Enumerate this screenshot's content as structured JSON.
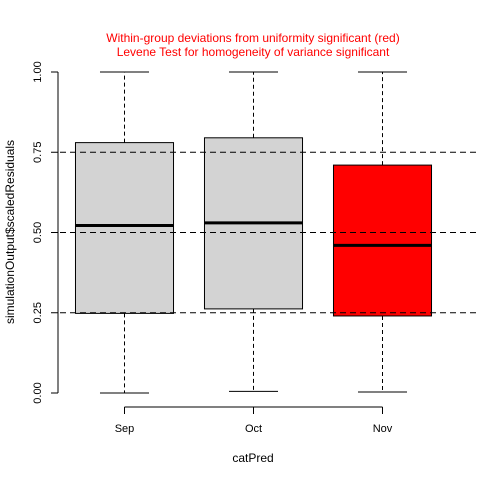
{
  "chart_data": {
    "type": "boxplot",
    "title_lines": [
      "Within-group deviations from uniformity significant (red)",
      "Levene Test for homogeneity of variance significant"
    ],
    "title_color": "#ff0000",
    "xlabel": "catPred",
    "ylabel": "simulationOutput$scaledResiduals",
    "ylim": [
      0,
      1
    ],
    "yticks": [
      0,
      0.25,
      0.5,
      0.75,
      1
    ],
    "ytick_labels": [
      "0.00",
      "0.25",
      "0.50",
      "0.75",
      "1.00"
    ],
    "reference_lines": [
      0.25,
      0.5,
      0.75
    ],
    "categories": [
      "Sep",
      "Oct",
      "Nov"
    ],
    "boxes": [
      {
        "category": "Sep",
        "whisker_low": 0.0,
        "q1": 0.248,
        "median": 0.522,
        "q3": 0.78,
        "whisker_high": 1.0,
        "color": "#d3d3d3"
      },
      {
        "category": "Oct",
        "whisker_low": 0.005,
        "q1": 0.262,
        "median": 0.53,
        "q3": 0.795,
        "whisker_high": 1.0,
        "color": "#d3d3d3"
      },
      {
        "category": "Nov",
        "whisker_low": 0.003,
        "q1": 0.24,
        "median": 0.46,
        "q3": 0.71,
        "whisker_high": 1.0,
        "color": "#ff0000"
      }
    ]
  }
}
